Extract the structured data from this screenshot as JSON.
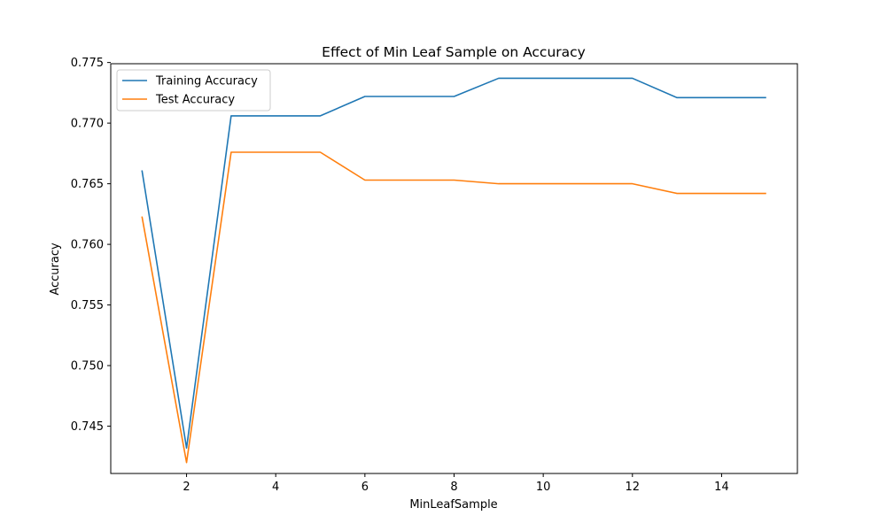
{
  "chart_data": {
    "type": "line",
    "title": "Effect of Min Leaf Sample on Accuracy",
    "xlabel": "MinLeafSample",
    "ylabel": "Accuracy",
    "x": [
      1,
      2,
      3,
      4,
      5,
      6,
      7,
      8,
      9,
      10,
      11,
      12,
      13,
      14,
      15
    ],
    "xlim": [
      0.3,
      15.7
    ],
    "ylim": [
      0.7411,
      0.7749
    ],
    "xticks": [
      2,
      4,
      6,
      8,
      10,
      12,
      14
    ],
    "xtick_labels": [
      "2",
      "4",
      "6",
      "8",
      "10",
      "12",
      "14"
    ],
    "yticks": [
      0.745,
      0.75,
      0.755,
      0.76,
      0.765,
      0.77,
      0.775
    ],
    "ytick_labels": [
      "0.745",
      "0.750",
      "0.755",
      "0.760",
      "0.765",
      "0.770",
      "0.775"
    ],
    "grid": false,
    "legend_position": "top-left",
    "series": [
      {
        "name": "Training Accuracy",
        "color": "#1f77b4",
        "values": [
          0.7661,
          0.7432,
          0.7706,
          0.7706,
          0.7706,
          0.7722,
          0.7722,
          0.7722,
          0.7737,
          0.7737,
          0.7737,
          0.7737,
          0.7721,
          0.7721,
          0.7721
        ]
      },
      {
        "name": "Test Accuracy",
        "color": "#ff7f0e",
        "values": [
          0.7623,
          0.742,
          0.7676,
          0.7676,
          0.7676,
          0.7653,
          0.7653,
          0.7653,
          0.765,
          0.765,
          0.765,
          0.765,
          0.7642,
          0.7642,
          0.7642
        ]
      }
    ]
  }
}
